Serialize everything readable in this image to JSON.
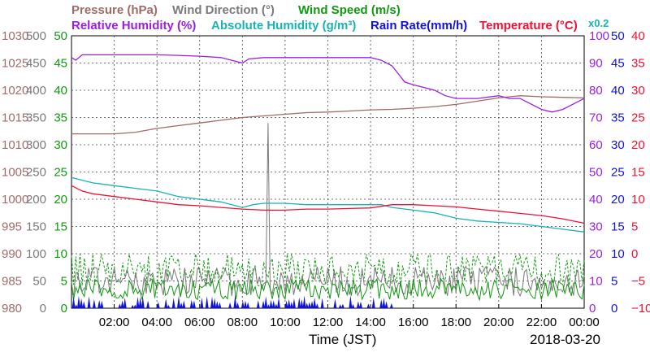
{
  "chart_data": {
    "type": "line",
    "legend_row1": [
      {
        "text": "Pressure (hPa)",
        "color": "#a06a6a"
      },
      {
        "text": "Wind Direction (°)",
        "color": "#7a7a7a"
      },
      {
        "text": "Wind Speed (m/s)",
        "color": "#119911"
      }
    ],
    "legend_row2": [
      {
        "text": "Relative Humidity (%)",
        "color": "#9a20e0"
      },
      {
        "text": "Absolute Humidity (g/m³)",
        "color": "#19b3b3"
      },
      {
        "text": "Rain Rate(mm/h)",
        "color": "#1111dd"
      },
      {
        "text": "Temperature (°C)",
        "color": "#ee1133"
      }
    ],
    "rain_multiplier": "x0.2",
    "xlabel": "Time (JST)",
    "date_label": "2018-03-20",
    "x_ticks": [
      "02:00",
      "04:00",
      "06:00",
      "08:00",
      "10:00",
      "12:00",
      "14:00",
      "16:00",
      "18:00",
      "20:00",
      "22:00",
      "00:00"
    ],
    "axes": {
      "pressure": {
        "color": "#a06a6a",
        "range": [
          980,
          1030
        ],
        "ticks": [
          "980",
          "985",
          "990",
          "995",
          "1000",
          "1005",
          "1010",
          "1015",
          "1020",
          "1025",
          "1030"
        ]
      },
      "wind_direction": {
        "color": "#7a7a7a",
        "range": [
          0,
          500
        ],
        "ticks": [
          "0",
          "50",
          "100",
          "150",
          "200",
          "250",
          "300",
          "350",
          "400",
          "450",
          "500"
        ]
      },
      "wind_speed": {
        "color": "#119911",
        "range": [
          0,
          50
        ],
        "ticks": [
          "0",
          "5",
          "10",
          "15",
          "20",
          "25",
          "30",
          "35",
          "40",
          "45",
          "50"
        ]
      },
      "humidity": {
        "color": "#9a20e0",
        "range": [
          0,
          100
        ],
        "ticks": [
          "0",
          "10",
          "20",
          "30",
          "40",
          "50",
          "60",
          "70",
          "80",
          "90",
          "100"
        ]
      },
      "rain_rate": {
        "color": "#1111dd",
        "range": [
          0,
          50
        ],
        "ticks": [
          "0",
          "5",
          "10",
          "15",
          "20",
          "25",
          "30",
          "35",
          "40",
          "45",
          "50"
        ]
      },
      "temperature": {
        "color": "#ee1133",
        "range": [
          -10,
          40
        ],
        "ticks": [
          "−10",
          "−5",
          "0",
          "5",
          "10",
          "15",
          "20",
          "25",
          "30",
          "35",
          "40"
        ]
      }
    },
    "x_range_hours": [
      0,
      24
    ],
    "series": [
      {
        "key": "pressure",
        "axis": "pressure",
        "color": "#a06a6a",
        "x": [
          0,
          1,
          2,
          3,
          4,
          5,
          6,
          7,
          8,
          9,
          10,
          11,
          12,
          13,
          14,
          15,
          16,
          17,
          18,
          19,
          20,
          21,
          22,
          23,
          24
        ],
        "y": [
          1012,
          1012,
          1012,
          1012.3,
          1013,
          1013.5,
          1014,
          1014.5,
          1015,
          1015.3,
          1015.6,
          1015.9,
          1016,
          1016.2,
          1016.4,
          1016.5,
          1016.7,
          1017,
          1017.4,
          1018,
          1018.6,
          1019,
          1018.8,
          1018.7,
          1018.6
        ]
      },
      {
        "key": "relative_humidity",
        "axis": "humidity",
        "color": "#9a20e0",
        "x": [
          0,
          0.2,
          0.5,
          1,
          2,
          3,
          4,
          5,
          6,
          7,
          7.5,
          8,
          8.3,
          9,
          10,
          11,
          12,
          13,
          14,
          14.5,
          15,
          15.3,
          15.6,
          16,
          17,
          17.5,
          18,
          19,
          20,
          20.5,
          21,
          21.5,
          22,
          22.5,
          23,
          23.5,
          24
        ],
        "y": [
          92,
          91,
          93,
          93,
          93,
          93,
          93,
          92.8,
          92.5,
          92,
          91,
          90,
          91.5,
          92,
          92,
          92,
          92,
          92,
          92,
          91,
          89,
          86,
          83,
          82,
          80,
          78,
          77,
          77,
          78,
          77,
          77,
          75,
          73,
          72,
          73,
          75,
          77
        ]
      },
      {
        "key": "absolute_humidity",
        "axis": "humidity",
        "color": "#19b3b3",
        "x": [
          0,
          0.5,
          1,
          2,
          3,
          4,
          5,
          6,
          7,
          7.5,
          8,
          8.5,
          9,
          10,
          11,
          12,
          13,
          14,
          14.5,
          15,
          16,
          17,
          18,
          19,
          20,
          21,
          22,
          23,
          24
        ],
        "y": [
          48,
          47,
          46,
          45,
          44,
          43,
          41,
          40,
          39,
          38,
          37,
          38,
          38.5,
          38.5,
          38,
          38,
          38,
          38,
          38,
          37,
          36,
          35,
          33,
          32,
          31.5,
          31,
          30,
          29,
          28
        ]
      },
      {
        "key": "temperature",
        "axis": "temperature",
        "color": "#ee1133",
        "x": [
          0,
          0.5,
          1,
          2,
          3,
          4,
          5,
          6,
          7,
          8,
          9,
          10,
          11,
          12,
          13,
          14,
          15,
          16,
          17,
          18,
          19,
          20,
          21,
          22,
          23,
          24
        ],
        "y": [
          12.5,
          11.5,
          11,
          10.5,
          10,
          9.5,
          9,
          8.8,
          8.5,
          8.2,
          8,
          8,
          8.2,
          8.2,
          8.3,
          8.4,
          9,
          9,
          8.8,
          8.6,
          8.2,
          7.8,
          7.4,
          7,
          6.4,
          5.6
        ]
      }
    ],
    "wind_direction_spike": {
      "x": 9.2,
      "value": 340,
      "base": 50
    },
    "wind_speed_mean_level": 3.5,
    "wind_gust_level": 7,
    "grid": "dotted",
    "legend_placement": "top"
  }
}
